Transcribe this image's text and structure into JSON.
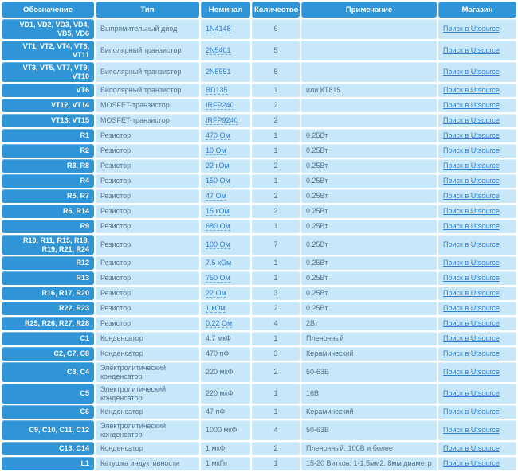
{
  "colors": {
    "header_bg": "#3095d6",
    "designation_bg": "#3095d6",
    "cell_bg": "#c8e7f9",
    "body_text": "#4f7490",
    "link": "#2e7fd0"
  },
  "table": {
    "columns": [
      "Обозначение",
      "Тип",
      "Номинал",
      "Количество",
      "Примечание",
      "Магазин"
    ],
    "shop_link_label": "Поиск в Utsource",
    "rows": [
      {
        "designation": "VD1, VD2, VD3, VD4, VD5, VD6",
        "type": "Выпрямительный диод",
        "value": "1N4148",
        "value_is_link": true,
        "quantity": "6",
        "note": ""
      },
      {
        "designation": "VT1, VT2, VT4, VT8, VT11",
        "type": "Биполярный транзистор",
        "value": "2N5401",
        "value_is_link": true,
        "quantity": "5",
        "note": ""
      },
      {
        "designation": "VT3, VT5, VT7, VT9, VT10",
        "type": "Биполярный транзистор",
        "value": "2N5551",
        "value_is_link": true,
        "quantity": "5",
        "note": ""
      },
      {
        "designation": "VT6",
        "type": "Биполярный транзистор",
        "value": "BD135",
        "value_is_link": true,
        "quantity": "1",
        "note": "или КТ815"
      },
      {
        "designation": "VT12, VT14",
        "type": "MOSFET-транзистор",
        "value": "IRFP240",
        "value_is_link": true,
        "quantity": "2",
        "note": ""
      },
      {
        "designation": "VT13, VT15",
        "type": "MOSFET-транзистор",
        "value": "IRFP9240",
        "value_is_link": true,
        "quantity": "2",
        "note": ""
      },
      {
        "designation": "R1",
        "type": "Резистор",
        "value": "470 Ом",
        "value_is_link": true,
        "quantity": "1",
        "note": "0.25Вт"
      },
      {
        "designation": "R2",
        "type": "Резистор",
        "value": "10 Ом",
        "value_is_link": true,
        "quantity": "1",
        "note": "0.25Вт"
      },
      {
        "designation": "R3, R8",
        "type": "Резистор",
        "value": "22 кОм",
        "value_is_link": true,
        "quantity": "2",
        "note": "0.25Вт"
      },
      {
        "designation": "R4",
        "type": "Резистор",
        "value": "150 Ом",
        "value_is_link": true,
        "quantity": "1",
        "note": "0.25Вт"
      },
      {
        "designation": "R5, R7",
        "type": "Резистор",
        "value": "47 Ом",
        "value_is_link": true,
        "quantity": "2",
        "note": "0.25Вт"
      },
      {
        "designation": "R6, R14",
        "type": "Резистор",
        "value": "15 кОм",
        "value_is_link": true,
        "quantity": "2",
        "note": "0.25Вт"
      },
      {
        "designation": "R9",
        "type": "Резистор",
        "value": "680 Ом",
        "value_is_link": true,
        "quantity": "1",
        "note": "0.25Вт"
      },
      {
        "designation": "R10, R11, R15, R18, R19, R21, R24",
        "type": "Резистор",
        "value": "100 Ом",
        "value_is_link": true,
        "quantity": "7",
        "note": "0.25Вт"
      },
      {
        "designation": "R12",
        "type": "Резистор",
        "value": "7.5 кОм",
        "value_is_link": true,
        "quantity": "1",
        "note": "0.25Вт"
      },
      {
        "designation": "R13",
        "type": "Резистор",
        "value": "750 Ом",
        "value_is_link": true,
        "quantity": "1",
        "note": "0.25Вт"
      },
      {
        "designation": "R16, R17, R20",
        "type": "Резистор",
        "value": "22 Ом",
        "value_is_link": true,
        "quantity": "3",
        "note": "0.25Вт"
      },
      {
        "designation": "R22, R23",
        "type": "Резистор",
        "value": "1 кОм",
        "value_is_link": true,
        "quantity": "2",
        "note": "0.25Вт"
      },
      {
        "designation": "R25, R26, R27, R28",
        "type": "Резистор",
        "value": "0.22 Ом",
        "value_is_link": true,
        "quantity": "4",
        "note": "2Вт"
      },
      {
        "designation": "C1",
        "type": "Конденсатор",
        "value": "4.7 мкФ",
        "value_is_link": false,
        "quantity": "1",
        "note": "Пленочный"
      },
      {
        "designation": "C2, C7, C8",
        "type": "Конденсатор",
        "value": "470 пФ",
        "value_is_link": false,
        "quantity": "3",
        "note": "Керамический"
      },
      {
        "designation": "C3, C4",
        "type": "Электролитический конденсатор",
        "value": "220 мкФ",
        "value_is_link": false,
        "quantity": "2",
        "note": "50-63В"
      },
      {
        "designation": "C5",
        "type": "Электролитический конденсатор",
        "value": "220 мкФ",
        "value_is_link": false,
        "quantity": "1",
        "note": "16В"
      },
      {
        "designation": "C6",
        "type": "Конденсатор",
        "value": "47 пФ",
        "value_is_link": false,
        "quantity": "1",
        "note": "Керамический"
      },
      {
        "designation": "C9, C10, C11, C12",
        "type": "Электролитический конденсатор",
        "value": "1000 мкФ",
        "value_is_link": false,
        "quantity": "4",
        "note": "50-63В"
      },
      {
        "designation": "C13, C14",
        "type": "Конденсатор",
        "value": "1 мкФ",
        "value_is_link": false,
        "quantity": "2",
        "note": "Пленочный. 100В и более"
      },
      {
        "designation": "L1",
        "type": "Катушка индуктивности",
        "value": "1 мкГн",
        "value_is_link": false,
        "quantity": "1",
        "note": "15-20 Витков. 1-1,5мм2. 8мм диаметр"
      }
    ]
  }
}
